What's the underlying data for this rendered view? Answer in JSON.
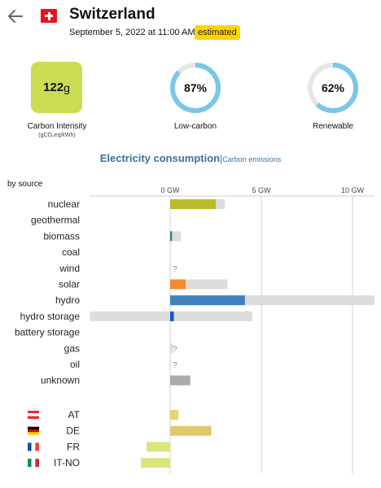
{
  "header": {
    "zone_name": "Switzerland",
    "datetime": "September 5, 2022 at 11:00 AM",
    "badge": "estimated"
  },
  "metrics": {
    "carbon_intensity": {
      "value": "122",
      "unit": "g",
      "label": "Carbon Intensity",
      "sublabel": "(gCO₂eq/kWh)",
      "color": "#c9dc52"
    },
    "low_carbon": {
      "percent": 87,
      "text": "87%",
      "label": "Low-carbon"
    },
    "renewable": {
      "percent": 62,
      "text": "62%",
      "label": "Renewable"
    }
  },
  "tabs": {
    "active": "Electricity consumption",
    "separator": "|",
    "inactive": "Carbon emissions"
  },
  "by_source_label": "by source",
  "colors": {
    "gauge_fill": "#7ac7e8",
    "gauge_track": "#e6e6e6",
    "capacity": "#dcdcdc"
  },
  "chart_data": {
    "type": "bar",
    "unit": "GW",
    "xlim": [
      -4.4,
      11.2
    ],
    "ticks": [
      {
        "value": 0,
        "label": "0 GW"
      },
      {
        "value": 5,
        "label": "5 GW"
      },
      {
        "value": 10,
        "label": "10 GW"
      }
    ],
    "sources": [
      {
        "name": "nuclear",
        "value": 2.5,
        "capacity": 3.0,
        "color": "#b9bb2c"
      },
      {
        "name": "geothermal",
        "value": 0,
        "capacity": 0,
        "color": "#d4d4d4"
      },
      {
        "name": "biomass",
        "value": 0.1,
        "capacity": 0.6,
        "color": "#2d8a59"
      },
      {
        "name": "coal",
        "value": 0,
        "capacity": 0,
        "color": "#555555"
      },
      {
        "name": "wind",
        "value": null,
        "capacity": 0.05,
        "color": "#74cdb9",
        "unknown_mark": "?"
      },
      {
        "name": "solar",
        "value": 0.85,
        "capacity": 3.15,
        "color": "#f28b2b"
      },
      {
        "name": "hydro",
        "value": 4.1,
        "capacity": 11.2,
        "color": "#3f80c0"
      },
      {
        "name": "hydro storage",
        "value": 0.2,
        "capacity": 4.5,
        "capacity_min": -4.4,
        "color": "#1c55c9"
      },
      {
        "name": "battery storage",
        "value": 0,
        "capacity": 0,
        "color": "#b76bc6"
      },
      {
        "name": "gas",
        "value": null,
        "capacity": 0.15,
        "color": "#bbbbbb",
        "unknown_mark": "?"
      },
      {
        "name": "oil",
        "value": null,
        "capacity": 0.05,
        "color": "#867d66",
        "unknown_mark": "?"
      },
      {
        "name": "unknown",
        "value": 1.1,
        "capacity": 1.1,
        "color": "#acacac"
      }
    ],
    "exchanges": [
      {
        "name": "AT",
        "flag": "at",
        "value": 0.45,
        "color": "#e5d56a"
      },
      {
        "name": "DE",
        "flag": "de",
        "value": 2.25,
        "color": "#e0c76a"
      },
      {
        "name": "FR",
        "flag": "fr",
        "value": -1.3,
        "color": "#dbe57c"
      },
      {
        "name": "IT-NO",
        "flag": "it",
        "value": -1.6,
        "color": "#dbe57c"
      }
    ]
  }
}
